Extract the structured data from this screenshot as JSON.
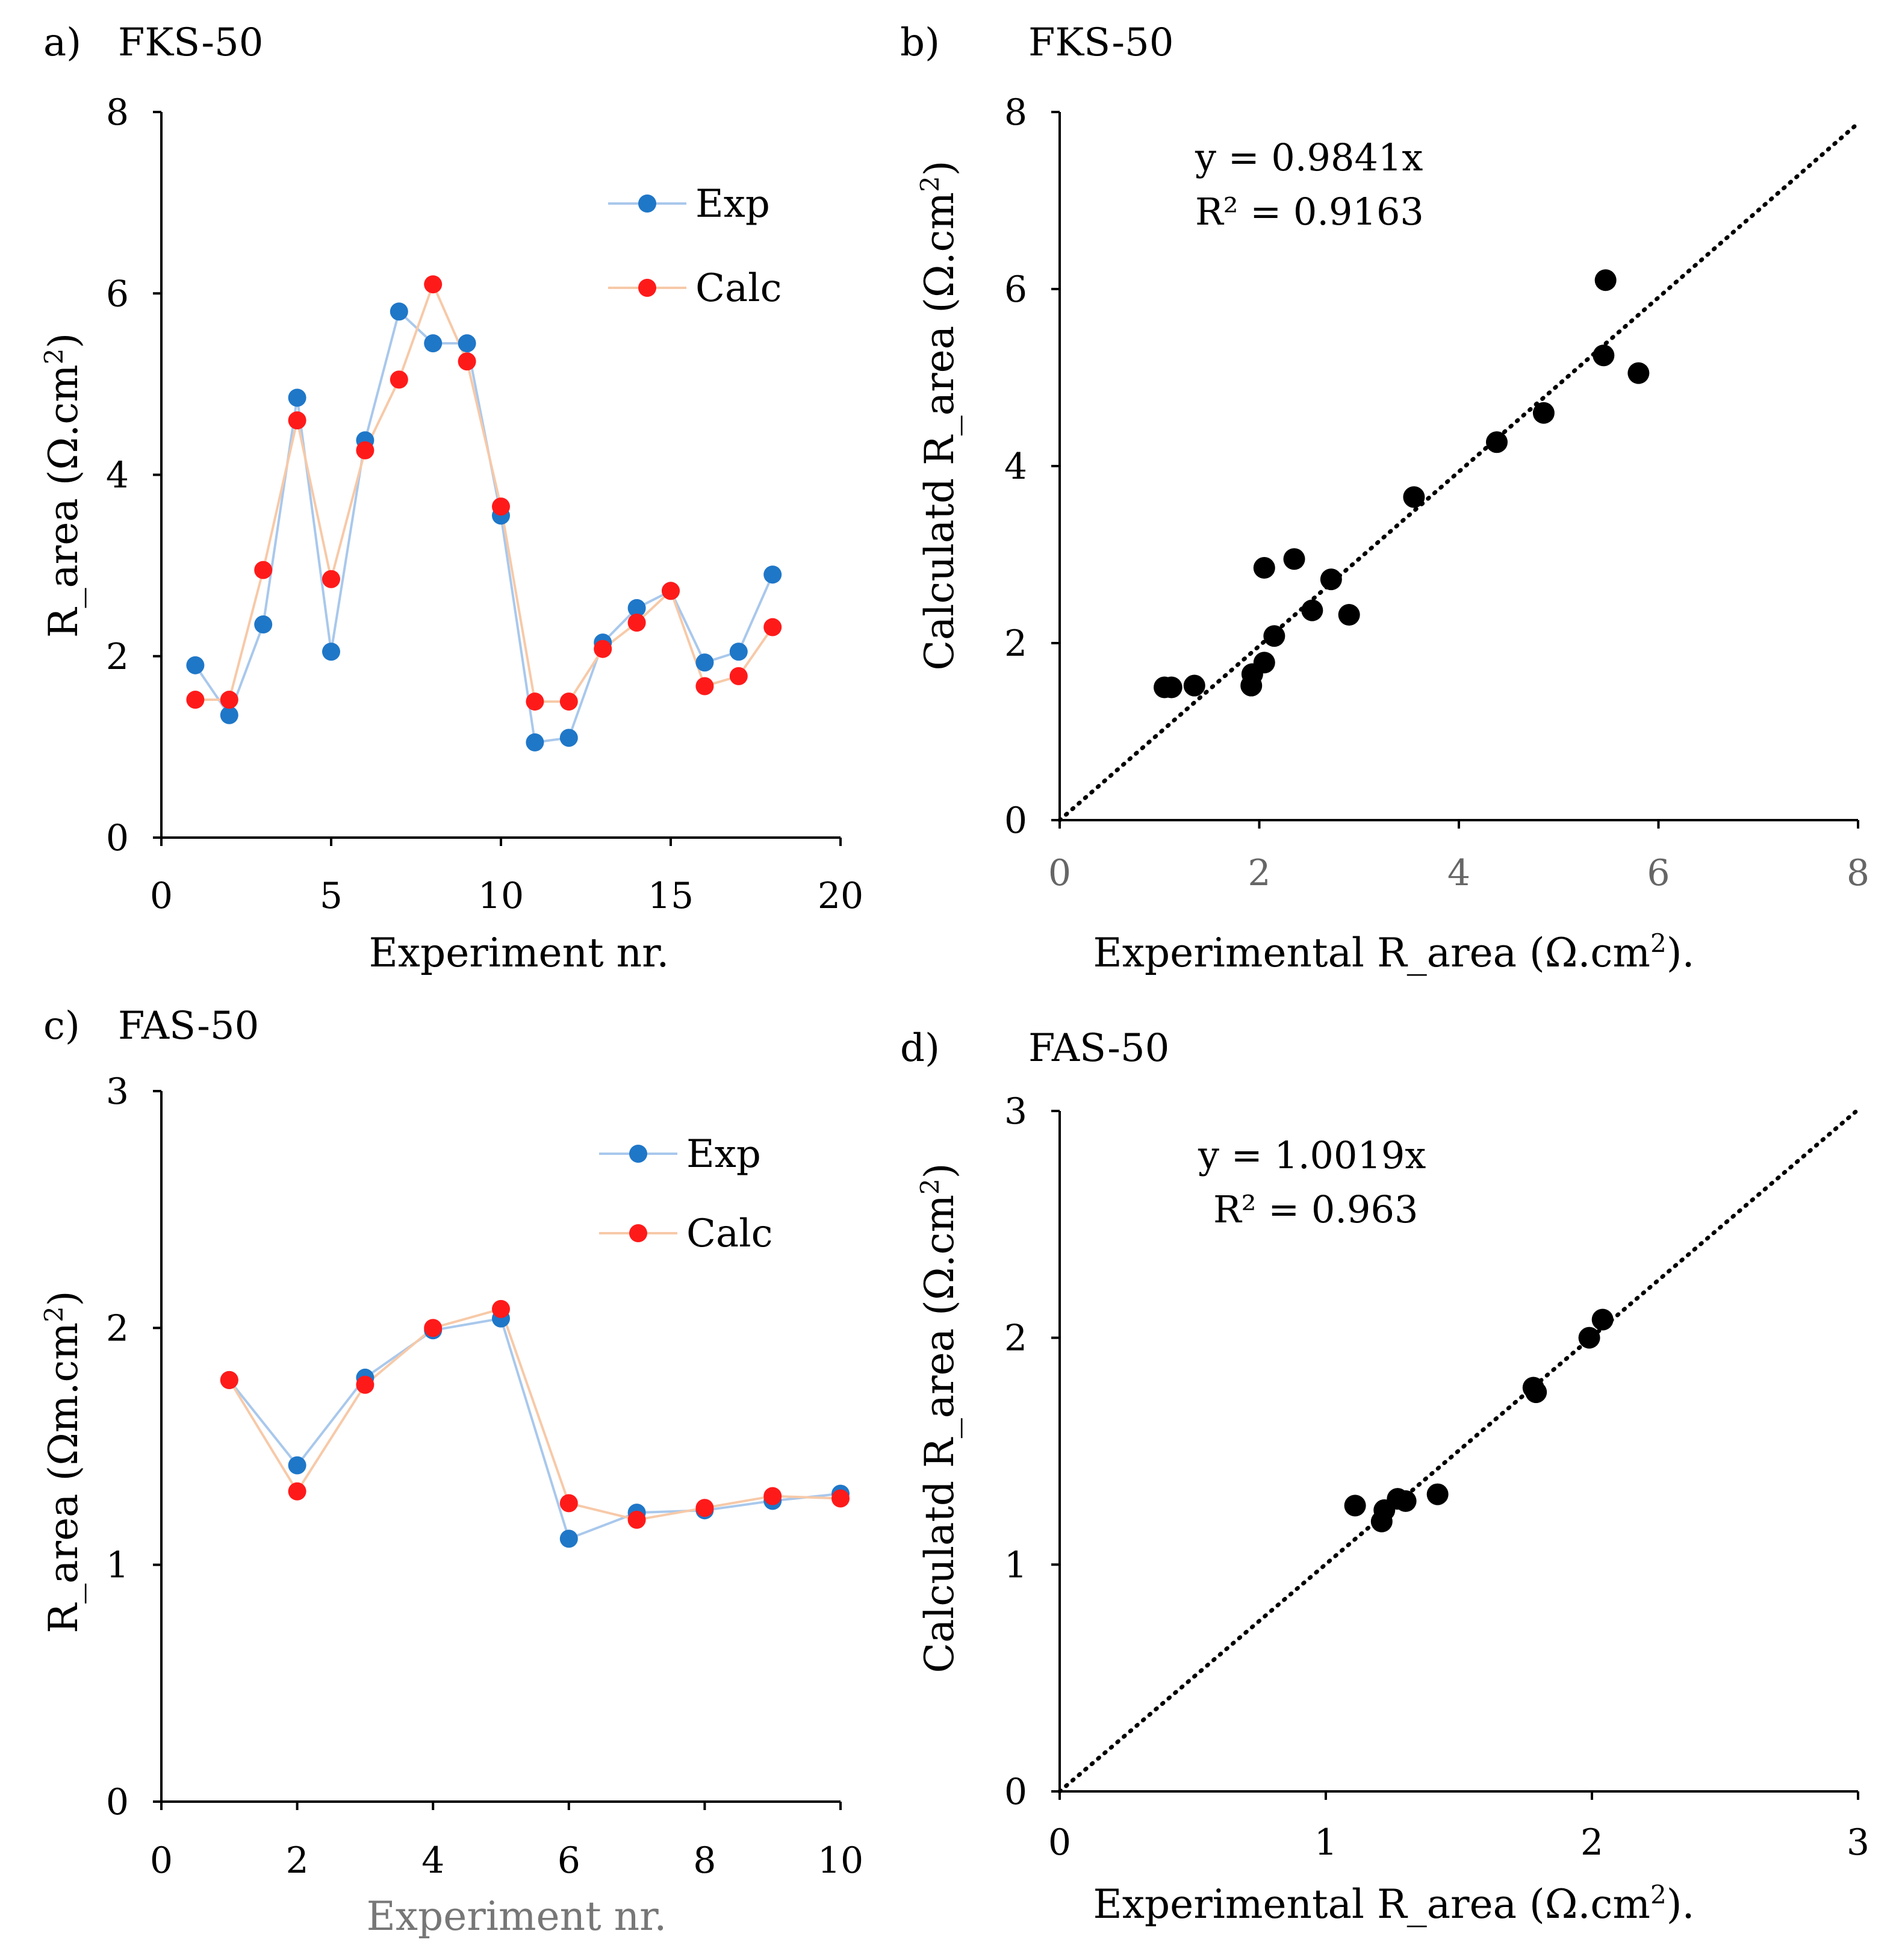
{
  "figure": {
    "panels": [
      {
        "id": "a",
        "label": "a)",
        "title": "FKS-50",
        "xlabel": "Experiment nr.",
        "ylabel_main": "R_area (Ω.cm",
        "ylabel_sup": "2",
        "ylabel_end": ")",
        "legend": [
          "Exp",
          "Calc"
        ]
      },
      {
        "id": "b",
        "label": "b)",
        "title": "FKS-50",
        "xlabel_main": "Experimental R_area (Ω.cm",
        "xlabel_sup": "2",
        "xlabel_end": ").",
        "ylabel_main": "Calculatd R_area (Ω.cm",
        "ylabel_sup": "2",
        "ylabel_end": ")",
        "equation": "y = 0.9841x",
        "r2": "R² = 0.9163"
      },
      {
        "id": "c",
        "label": "c)",
        "title": "FAS-50",
        "xlabel": "Experiment nr.",
        "ylabel_main": "R_area (Ωm.cm",
        "ylabel_sup": "2",
        "ylabel_end": ")",
        "legend": [
          "Exp",
          "Calc"
        ]
      },
      {
        "id": "d",
        "label": "d)",
        "title": "FAS-50",
        "xlabel_main": "Experimental R_area (Ω.cm",
        "xlabel_sup": "2",
        "xlabel_end": ").",
        "ylabel_main": "Calculatd R_area (Ω.cm",
        "ylabel_sup": "2",
        "ylabel_end": ")",
        "equation": "y = 1.0019x",
        "r2": "R² = 0.963"
      }
    ]
  },
  "colors": {
    "exp": "#1f77c8",
    "calc": "#ff1a1a",
    "exp_line": "#a9c8ec",
    "calc_line": "#f7c9a8",
    "scatter": "#000000",
    "axis": "#000000"
  },
  "chart_data": [
    {
      "panel": "a",
      "type": "line",
      "title": "FKS-50",
      "xlabel": "Experiment nr.",
      "ylabel": "R_area (Ω.cm2)",
      "xlim": [
        0,
        20
      ],
      "ylim": [
        0,
        8
      ],
      "xticks": [
        0,
        5,
        10,
        15,
        20
      ],
      "yticks": [
        0,
        2,
        4,
        6,
        8
      ],
      "x": [
        1,
        2,
        3,
        4,
        5,
        6,
        7,
        8,
        9,
        10,
        11,
        12,
        13,
        14,
        15,
        16,
        17,
        18
      ],
      "series": [
        {
          "name": "Exp",
          "values": [
            1.9,
            1.35,
            2.35,
            4.85,
            2.05,
            4.38,
            5.8,
            5.45,
            5.45,
            3.55,
            1.05,
            1.1,
            2.15,
            2.53,
            2.72,
            1.93,
            2.05,
            2.9
          ]
        },
        {
          "name": "Calc",
          "values": [
            1.52,
            1.52,
            2.95,
            4.6,
            2.85,
            4.27,
            5.05,
            6.1,
            5.25,
            3.65,
            1.5,
            1.5,
            2.08,
            2.37,
            2.72,
            1.67,
            1.78,
            2.32
          ]
        }
      ],
      "legend": "top-right"
    },
    {
      "panel": "b",
      "type": "scatter",
      "title": "FKS-50",
      "xlabel": "Experimental R_area (Ω.cm2).",
      "ylabel": "Calculatd R_area (Ω.cm2)",
      "xlim": [
        0,
        8
      ],
      "ylim": [
        0,
        8
      ],
      "xticks": [
        0,
        2,
        4,
        6,
        8
      ],
      "yticks": [
        0,
        2,
        4,
        6,
        8
      ],
      "points": [
        [
          1.05,
          1.5
        ],
        [
          1.12,
          1.5
        ],
        [
          1.35,
          1.52
        ],
        [
          1.92,
          1.52
        ],
        [
          1.93,
          1.65
        ],
        [
          2.05,
          1.78
        ],
        [
          2.05,
          2.85
        ],
        [
          2.15,
          2.08
        ],
        [
          2.35,
          2.95
        ],
        [
          2.53,
          2.37
        ],
        [
          2.72,
          2.72
        ],
        [
          2.9,
          2.32
        ],
        [
          3.55,
          3.65
        ],
        [
          4.38,
          4.27
        ],
        [
          4.85,
          4.6
        ],
        [
          5.45,
          5.25
        ],
        [
          5.47,
          6.1
        ],
        [
          5.8,
          5.05
        ]
      ],
      "trendline": {
        "slope": 0.9841,
        "equation": "y = 0.9841x",
        "r2": "R² = 0.9163",
        "style": "dotted"
      }
    },
    {
      "panel": "c",
      "type": "line",
      "title": "FAS-50",
      "xlabel": "Experiment nr.",
      "ylabel": "R_area (Ωm.cm2)",
      "xlim": [
        0,
        10
      ],
      "ylim": [
        0,
        3
      ],
      "xticks": [
        0,
        2,
        4,
        6,
        8,
        10
      ],
      "yticks": [
        0,
        1,
        2,
        3
      ],
      "x": [
        1,
        2,
        3,
        4,
        5,
        6,
        7,
        8,
        9,
        10
      ],
      "series": [
        {
          "name": "Exp",
          "values": [
            1.78,
            1.42,
            1.79,
            1.99,
            2.04,
            1.11,
            1.22,
            1.23,
            1.27,
            1.3
          ]
        },
        {
          "name": "Calc",
          "values": [
            1.78,
            1.31,
            1.76,
            2.0,
            2.08,
            1.26,
            1.19,
            1.24,
            1.29,
            1.28
          ]
        }
      ],
      "legend": "top-right"
    },
    {
      "panel": "d",
      "type": "scatter",
      "title": "FAS-50",
      "xlabel": "Experimental R_area (Ω.cm2).",
      "ylabel": "Calculatd R_area (Ω.cm2)",
      "xlim": [
        0,
        3
      ],
      "ylim": [
        0,
        3
      ],
      "xticks": [
        0,
        1,
        2,
        3
      ],
      "yticks": [
        0,
        1,
        2,
        3
      ],
      "points": [
        [
          1.11,
          1.26
        ],
        [
          1.21,
          1.19
        ],
        [
          1.22,
          1.24
        ],
        [
          1.27,
          1.29
        ],
        [
          1.3,
          1.28
        ],
        [
          1.42,
          1.31
        ],
        [
          1.78,
          1.78
        ],
        [
          1.79,
          1.76
        ],
        [
          1.99,
          2.0
        ],
        [
          2.04,
          2.08
        ]
      ],
      "trendline": {
        "slope": 1.0019,
        "equation": "y = 1.0019x",
        "r2": "R² = 0.963",
        "style": "dotted"
      }
    }
  ]
}
